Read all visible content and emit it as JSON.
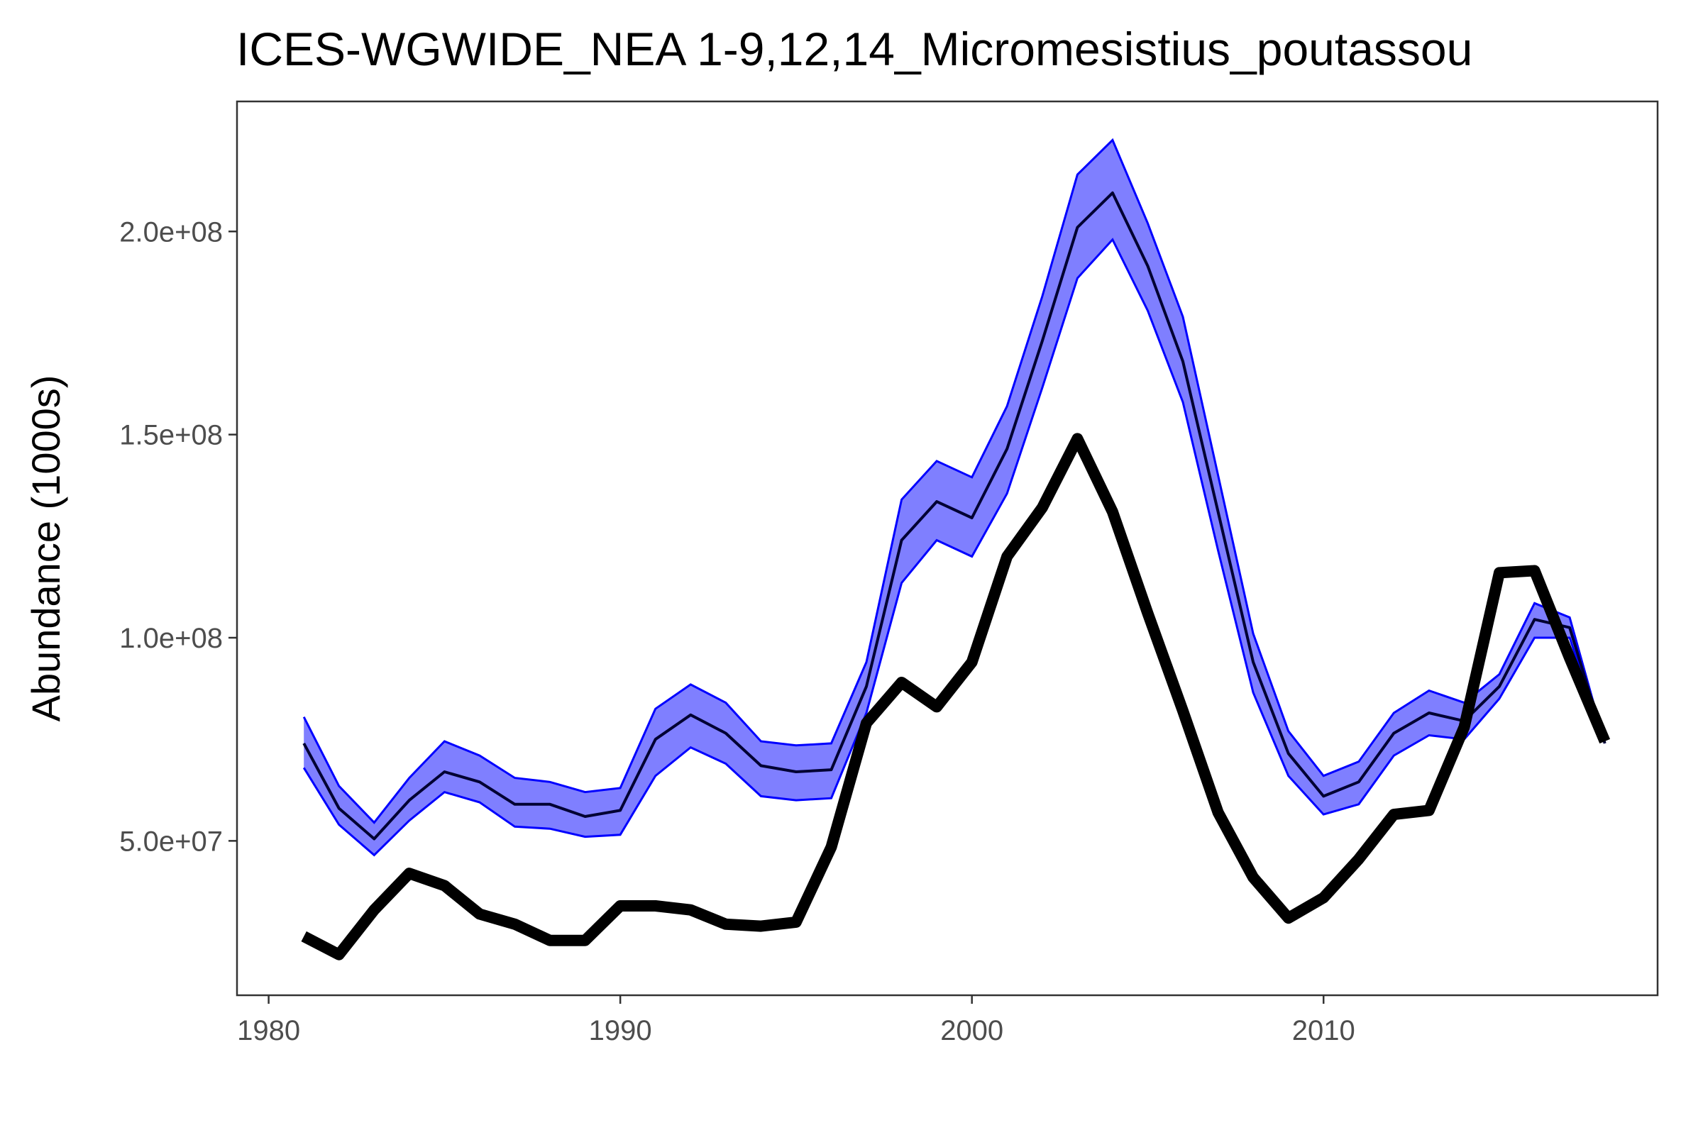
{
  "chart_data": {
    "type": "line",
    "title": "ICES-WGWIDE_NEA 1-9,12,14_Micromesistius_poutassou",
    "xlabel": "",
    "ylabel": "Abundance (1000s)",
    "xlim": [
      1979.1,
      2019.5
    ],
    "ylim": [
      12000000,
      232000000
    ],
    "grid": false,
    "legend": "none",
    "x_ticks": [
      1980,
      1990,
      2000,
      2010
    ],
    "x_tick_labels": [
      "1980",
      "1990",
      "2000",
      "2010"
    ],
    "y_ticks": [
      50000000,
      100000000,
      150000000,
      200000000
    ],
    "y_tick_labels": [
      "5.0e+07",
      "1.0e+08",
      "1.5e+08",
      "2.0e+08"
    ],
    "colors": {
      "band_fill": "#0000ff",
      "band_edge": "#0000ff",
      "estimate_line": "#000033",
      "observed_line": "#000000"
    },
    "series": [
      {
        "role": "band",
        "x": [
          1981,
          1982,
          1983,
          1984,
          1985,
          1986,
          1987,
          1988,
          1989,
          1990,
          1991,
          1992,
          1993,
          1994,
          1995,
          1996,
          1997,
          1998,
          1999,
          2000,
          2001,
          2002,
          2003,
          2004,
          2005,
          2006,
          2007,
          2008,
          2009,
          2010,
          2011,
          2012,
          2013,
          2014,
          2015,
          2016,
          2017,
          2018
        ],
        "upper": [
          80500000,
          63500000,
          54500000,
          65500000,
          74500000,
          71000000,
          65500000,
          64500000,
          62000000,
          63000000,
          82500000,
          88500000,
          84000000,
          74500000,
          73500000,
          74000000,
          94000000,
          134000000,
          143500000,
          139500000,
          157000000,
          184000000,
          214000000,
          222500000,
          202000000,
          179000000,
          140000000,
          101000000,
          77000000,
          66000000,
          69500000,
          81500000,
          87000000,
          84000000,
          91000000,
          108500000,
          105000000,
          74000000
        ],
        "lower": [
          68000000,
          54000000,
          46500000,
          55000000,
          62000000,
          59500000,
          53500000,
          53000000,
          51000000,
          51500000,
          66000000,
          73000000,
          69000000,
          61000000,
          60000000,
          60500000,
          81500000,
          113500000,
          124000000,
          120000000,
          135500000,
          161500000,
          188500000,
          198000000,
          180500000,
          158000000,
          121500000,
          86500000,
          66000000,
          56500000,
          59000000,
          71000000,
          76000000,
          75000000,
          85000000,
          100000000,
          100000000,
          74000000
        ]
      },
      {
        "role": "estimate",
        "x": [
          1981,
          1982,
          1983,
          1984,
          1985,
          1986,
          1987,
          1988,
          1989,
          1990,
          1991,
          1992,
          1993,
          1994,
          1995,
          1996,
          1997,
          1998,
          1999,
          2000,
          2001,
          2002,
          2003,
          2004,
          2005,
          2006,
          2007,
          2008,
          2009,
          2010,
          2011,
          2012,
          2013,
          2014,
          2015,
          2016,
          2017,
          2018
        ],
        "y": [
          74000000,
          58000000,
          50500000,
          60000000,
          67000000,
          64500000,
          59000000,
          59000000,
          56000000,
          57500000,
          75000000,
          81000000,
          76500000,
          68500000,
          67000000,
          67500000,
          88000000,
          124000000,
          133500000,
          129500000,
          146500000,
          173000000,
          201000000,
          209500000,
          191500000,
          168000000,
          131000000,
          94000000,
          71500000,
          61000000,
          64500000,
          76500000,
          81500000,
          79500000,
          88000000,
          104500000,
          102500000,
          74000000
        ]
      },
      {
        "role": "observed",
        "x": [
          1981,
          1982,
          1983,
          1984,
          1985,
          1986,
          1987,
          1988,
          1989,
          1990,
          1991,
          1992,
          1993,
          1994,
          1995,
          1996,
          1997,
          1998,
          1999,
          2000,
          2001,
          2002,
          2003,
          2004,
          2005,
          2006,
          2007,
          2008,
          2009,
          2010,
          2011,
          2012,
          2013,
          2014,
          2015,
          2016,
          2017,
          2018
        ],
        "y": [
          26500000,
          22000000,
          33000000,
          42000000,
          39000000,
          32000000,
          29500000,
          25500000,
          25500000,
          34000000,
          34000000,
          33000000,
          29500000,
          29000000,
          30000000,
          48500000,
          79000000,
          89000000,
          83000000,
          94000000,
          120000000,
          132000000,
          149000000,
          131000000,
          106000000,
          82000000,
          57000000,
          41000000,
          31000000,
          36000000,
          45500000,
          56500000,
          57500000,
          78000000,
          116000000,
          116500000,
          95000000,
          74500000
        ]
      }
    ]
  }
}
